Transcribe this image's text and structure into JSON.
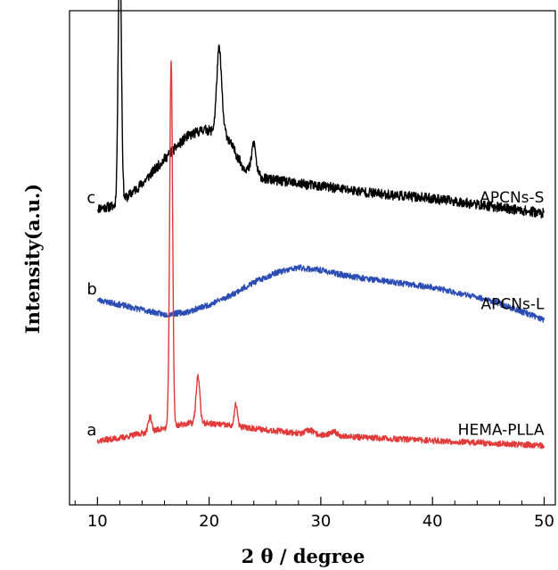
{
  "chart_data": {
    "type": "line",
    "xlabel": "2 θ / degree",
    "ylabel": "Intensity(a.u.)",
    "xlim": [
      7.5,
      51
    ],
    "x_ticks": [
      10,
      20,
      30,
      40,
      50
    ],
    "y_ticks_shown": false,
    "grid": false,
    "legend": "none",
    "series": [
      {
        "name": "APCNs-S",
        "letter": "c",
        "color": "#000000",
        "base": 0.6,
        "bg": [
          [
            10,
            0
          ],
          [
            11.6,
            0.005
          ],
          [
            12.5,
            0.02
          ],
          [
            14,
            0.05
          ],
          [
            16,
            0.1
          ],
          [
            18,
            0.145
          ],
          [
            19.5,
            0.16
          ],
          [
            21.5,
            0.15
          ],
          [
            23,
            0.085
          ],
          [
            25,
            0.06
          ],
          [
            28,
            0.05
          ],
          [
            30,
            0.045
          ],
          [
            35,
            0.03
          ],
          [
            40,
            0.02
          ],
          [
            45,
            0.005
          ],
          [
            50,
            -0.01
          ]
        ],
        "peaks": [
          [
            12.0,
            0.54,
            0.14
          ],
          [
            20.9,
            0.17,
            0.22
          ],
          [
            24.0,
            0.06,
            0.18
          ]
        ],
        "noise": 0.01,
        "seed": 11
      },
      {
        "name": "APCNs-L",
        "letter": "b",
        "color": "#2b4db3",
        "base": 0.405,
        "bg": [
          [
            10,
            0.01
          ],
          [
            12,
            0
          ],
          [
            14,
            -0.01
          ],
          [
            16,
            -0.02
          ],
          [
            18,
            -0.015
          ],
          [
            20,
            0
          ],
          [
            22,
            0.02
          ],
          [
            24,
            0.045
          ],
          [
            26,
            0.065
          ],
          [
            28,
            0.075
          ],
          [
            30,
            0.07
          ],
          [
            32,
            0.06
          ],
          [
            35,
            0.05
          ],
          [
            40,
            0.035
          ],
          [
            45,
            0.01
          ],
          [
            50,
            -0.03
          ]
        ],
        "peaks": [],
        "noise": 0.006,
        "seed": 23
      },
      {
        "name": "HEMA-PLLA",
        "letter": "a",
        "color": "#e03a3a",
        "base": 0.13,
        "bg": [
          [
            10,
            0
          ],
          [
            12,
            0.005
          ],
          [
            14,
            0.015
          ],
          [
            16,
            0.025
          ],
          [
            18,
            0.035
          ],
          [
            20,
            0.035
          ],
          [
            22,
            0.03
          ],
          [
            24,
            0.025
          ],
          [
            26,
            0.02
          ],
          [
            28,
            0.015
          ],
          [
            30,
            0.012
          ],
          [
            35,
            0.005
          ],
          [
            40,
            0
          ],
          [
            45,
            -0.005
          ],
          [
            50,
            -0.01
          ]
        ],
        "peaks": [
          [
            14.7,
            0.03,
            0.15
          ],
          [
            16.6,
            0.74,
            0.13
          ],
          [
            19.0,
            0.095,
            0.17
          ],
          [
            22.4,
            0.045,
            0.13
          ],
          [
            29.0,
            0.008,
            0.3
          ],
          [
            31.2,
            0.007,
            0.3
          ]
        ],
        "noise": 0.006,
        "seed": 37
      }
    ]
  }
}
